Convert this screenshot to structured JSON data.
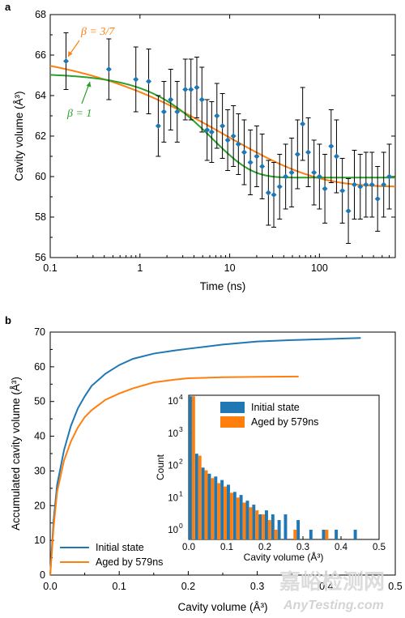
{
  "colors": {
    "blue": "#1f77b4",
    "orange": "#ff7f0e",
    "green": "#2ca02c",
    "errorbar": "#000000"
  },
  "chart_data": [
    {
      "panel": "a",
      "type": "scatter",
      "xlabel": "Time (ns)",
      "ylabel": "Cavity volume (Å³)",
      "xscale": "log",
      "xlim": [
        0.1,
        700
      ],
      "ylim": [
        56,
        68
      ],
      "xticks": [
        "0.1",
        "1",
        "10",
        "100"
      ],
      "yticks": [
        "56",
        "58",
        "60",
        "62",
        "64",
        "66",
        "68"
      ],
      "annotations": [
        "β = 3/7",
        "β = 1"
      ],
      "series": [
        {
          "kind": "points_with_errorbars",
          "color": "#1f77b4",
          "x": [
            0.15,
            0.45,
            0.9,
            1.25,
            1.6,
            1.85,
            2.2,
            2.6,
            3.2,
            3.7,
            4.3,
            4.9,
            5.6,
            6.3,
            7.2,
            8.3,
            9.5,
            11,
            12.5,
            14.5,
            17,
            20,
            23,
            27,
            31,
            36,
            42,
            49,
            57,
            65,
            75,
            87,
            100,
            115,
            135,
            155,
            180,
            210,
            245,
            285,
            330,
            385,
            445,
            520,
            600
          ],
          "y": [
            65.7,
            65.3,
            64.8,
            64.7,
            62.5,
            63.2,
            63.8,
            63.2,
            64.3,
            64.3,
            64.4,
            63.8,
            62.3,
            62.2,
            63.0,
            62.5,
            61.8,
            62.0,
            61.6,
            61.2,
            60.7,
            61.0,
            60.5,
            59.2,
            59.1,
            59.5,
            60.0,
            60.2,
            61.1,
            62.6,
            61.2,
            60.2,
            60.0,
            59.4,
            61.5,
            61.0,
            59.3,
            58.3,
            59.6,
            59.5,
            59.6,
            59.6,
            58.9,
            59.6,
            60.0
          ],
          "err": [
            1.4,
            1.5,
            1.6,
            1.6,
            1.5,
            1.5,
            1.5,
            1.5,
            1.5,
            1.5,
            1.5,
            1.6,
            1.5,
            1.5,
            1.6,
            1.6,
            1.5,
            1.5,
            1.5,
            1.6,
            1.6,
            1.5,
            1.6,
            1.6,
            1.6,
            1.6,
            1.6,
            1.7,
            1.7,
            1.8,
            1.7,
            1.6,
            1.6,
            1.7,
            1.8,
            1.8,
            1.6,
            1.6,
            1.7,
            1.6,
            1.6,
            1.6,
            1.6,
            1.6,
            1.6
          ]
        },
        {
          "name": "β = 3/7",
          "kind": "line",
          "color": "#ff7f0e",
          "beta": 0.428571,
          "y0": 66.4,
          "yinf": 59.5,
          "tau": 9
        },
        {
          "name": "β = 1",
          "kind": "line",
          "color": "#2ca02c",
          "beta": 1,
          "y0": 65.1,
          "yinf": 59.95,
          "tau": 6.5
        }
      ]
    },
    {
      "panel": "b",
      "type": "line",
      "xlabel": "Cavity volume (Å³)",
      "ylabel": "Accumulated cavity volume (Å³)",
      "xlim": [
        0,
        0.5
      ],
      "ylim": [
        0,
        70
      ],
      "xticks": [
        "0.0",
        "0.1",
        "0.2",
        "0.3",
        "0.4",
        "0.5"
      ],
      "yticks": [
        "0",
        "10",
        "20",
        "30",
        "40",
        "50",
        "60",
        "70"
      ],
      "legend": "bottom-left",
      "series": [
        {
          "name": "Initial state",
          "color": "#1f77b4",
          "x": [
            0,
            0.005,
            0.01,
            0.02,
            0.03,
            0.04,
            0.05,
            0.06,
            0.08,
            0.1,
            0.12,
            0.15,
            0.18,
            0.2,
            0.25,
            0.3,
            0.35,
            0.4,
            0.45
          ],
          "y": [
            0,
            16,
            26,
            36,
            43,
            48,
            51.5,
            54.5,
            58,
            60.5,
            62.3,
            63.8,
            64.7,
            65.2,
            66.4,
            67.3,
            67.7,
            68.0,
            68.3
          ]
        },
        {
          "name": "Aged by 579ns",
          "color": "#ff7f0e",
          "x": [
            0,
            0.005,
            0.01,
            0.02,
            0.03,
            0.04,
            0.05,
            0.06,
            0.08,
            0.1,
            0.12,
            0.15,
            0.18,
            0.2,
            0.25,
            0.3,
            0.36
          ],
          "y": [
            0,
            14,
            24,
            33,
            38.5,
            42.5,
            45.5,
            47.5,
            50.5,
            52.3,
            53.8,
            55.5,
            56.3,
            56.7,
            57.0,
            57.1,
            57.2
          ]
        }
      ]
    },
    {
      "panel": "b-inset",
      "type": "bar",
      "xlabel": "Cavity volume (Å³)",
      "ylabel": "Count",
      "yscale": "log",
      "xlim": [
        0,
        0.5
      ],
      "ylim": [
        0.5,
        15000
      ],
      "xticks": [
        "0.0",
        "0.1",
        "0.2",
        "0.3",
        "0.4",
        "0.5"
      ],
      "yticks": [
        "10",
        "10",
        "10",
        "10",
        "10"
      ],
      "ytick_exponents": [
        "0",
        "1",
        "2",
        "3",
        "4"
      ],
      "legend": "top-center",
      "bin_width": 0.0167,
      "series": [
        {
          "name": "Initial state",
          "color": "#1f77b4",
          "bins": [
            0.0,
            0.0167,
            0.0333,
            0.05,
            0.0667,
            0.0833,
            0.1,
            0.1167,
            0.1333,
            0.15,
            0.1667,
            0.1833,
            0.2,
            0.2167,
            0.2333,
            0.25,
            0.2833,
            0.3167,
            0.35,
            0.3833,
            0.4333
          ],
          "counts": [
            14000,
            230,
            85,
            55,
            45,
            35,
            25,
            15,
            12,
            8,
            6,
            3,
            4,
            3,
            2,
            3,
            2,
            1,
            1,
            1,
            1
          ]
        },
        {
          "name": "Aged by 579ns",
          "color": "#ff7f0e",
          "bins": [
            0.0,
            0.0167,
            0.0333,
            0.05,
            0.0667,
            0.0833,
            0.1,
            0.1167,
            0.1333,
            0.15,
            0.1667,
            0.1833,
            0.2,
            0.2167,
            0.2667,
            0.35
          ],
          "counts": [
            14000,
            200,
            70,
            40,
            28,
            22,
            14,
            10,
            7,
            5,
            4,
            3,
            2,
            1,
            1,
            1
          ]
        }
      ]
    }
  ],
  "watermark": {
    "cn": "嘉峪检测网",
    "en": "AnyTesting.com"
  }
}
